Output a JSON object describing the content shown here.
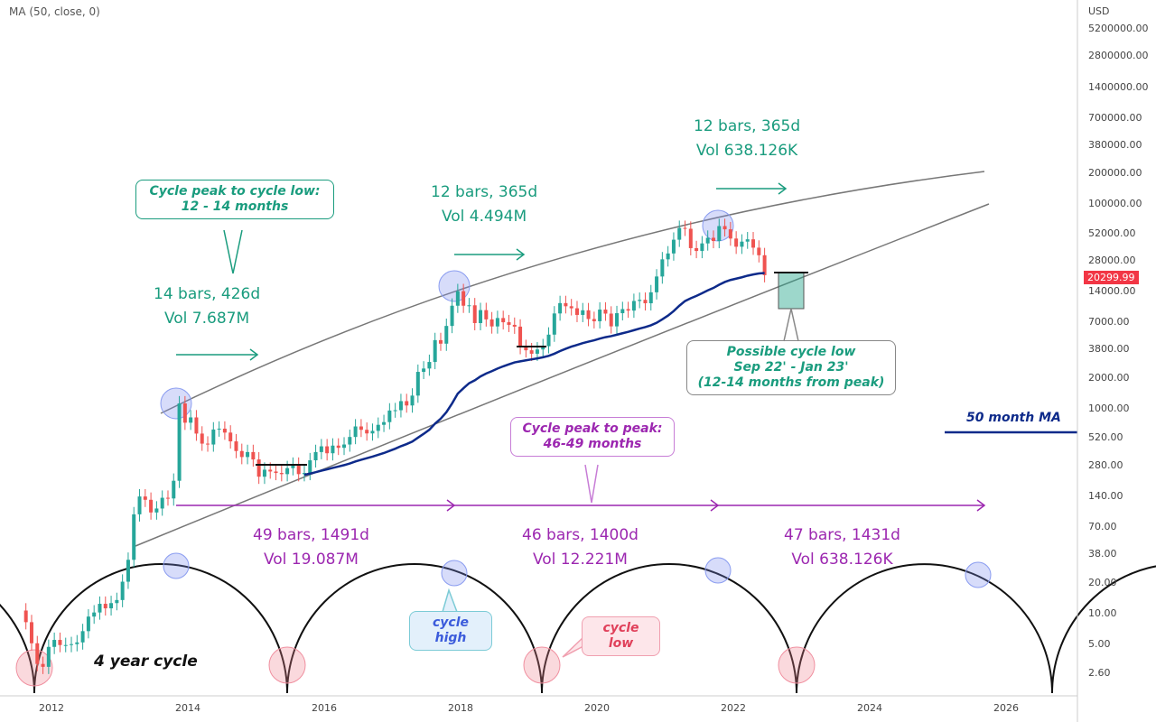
{
  "chart_data": {
    "type": "candlestick",
    "title": "",
    "indicator_legend": "MA (50, close, 0)",
    "currency": "USD",
    "y_scale": "log",
    "y_ticks": [
      "5200000.00",
      "2800000.00",
      "1400000.00",
      "700000.00",
      "380000.00",
      "200000.00",
      "100000.00",
      "52000.00",
      "28000.00",
      "14000.00",
      "7000.00",
      "3800.00",
      "2000.00",
      "1000.00",
      "520.00",
      "280.00",
      "140.00",
      "70.00",
      "38.00",
      "20.00",
      "10.00",
      "5.00",
      "2.60"
    ],
    "x_ticks": [
      "2012",
      "2014",
      "2016",
      "2018",
      "2020",
      "2022",
      "2024",
      "2026"
    ],
    "last_price": "20299.99",
    "interval": "monthly",
    "start": "2011-08",
    "closes": [
      8.2,
      5.1,
      3.2,
      3.0,
      4.7,
      5.5,
      4.9,
      4.9,
      5.0,
      5.2,
      6.7,
      9.3,
      10.2,
      12.4,
      11.2,
      12.6,
      13.5,
      20.4,
      33.4,
      93,
      139,
      129,
      97,
      106,
      135,
      133,
      198,
      1130,
      732,
      825,
      573,
      457,
      448,
      628,
      640,
      586,
      481,
      387,
      338,
      378,
      320,
      217,
      254,
      244,
      236,
      230,
      263,
      284,
      230,
      236,
      314,
      378,
      430,
      368,
      437,
      416,
      448,
      531,
      673,
      624,
      575,
      609,
      698,
      742,
      963,
      970,
      1190,
      1079,
      1348,
      2300,
      2480,
      2875,
      4700,
      4340,
      6470,
      10200,
      14150,
      10200,
      10300,
      6900,
      9240,
      7500,
      6400,
      7730,
      7030,
      6630,
      6370,
      4020,
      3740,
      3460,
      3810,
      4100,
      5320,
      8570,
      10820,
      10080,
      9630,
      8290,
      9200,
      7560,
      7190,
      9350,
      8540,
      6410,
      8620,
      9450,
      9140,
      11350,
      11650,
      10780,
      13800,
      19700,
      28990,
      33100,
      45100,
      58800,
      57700,
      37300,
      35000,
      41500,
      47100,
      43800,
      61300,
      57000,
      46300,
      38500,
      43200,
      45500,
      37700,
      31800,
      20299.99
    ],
    "ma_period": 50,
    "colors": {
      "up": "#26a69a",
      "down": "#ef5350",
      "ma": "#0d2a8a",
      "teal": "#1a9c7e",
      "purple": "#9c27b0",
      "cycle_high": "#7b8cf0",
      "cycle_low": "#f08090"
    }
  },
  "annotations": {
    "peak_to_low_bubble": [
      "Cycle peak to cycle low:",
      "12 - 14 months"
    ],
    "measure_1": [
      "14 bars, 426d",
      "Vol 7.687M"
    ],
    "measure_2": [
      "12 bars, 365d",
      "Vol 4.494M"
    ],
    "measure_3": [
      "12 bars, 365d",
      "Vol 638.126K"
    ],
    "possible_low_bubble": [
      "Possible cycle low",
      "Sep 22' - Jan 23'",
      "(12-14 months from peak)"
    ],
    "peak_to_peak_bubble": [
      "Cycle peak to peak:",
      "46-49 months"
    ],
    "cycle_1": [
      "49 bars, 1491d",
      "Vol 19.087M"
    ],
    "cycle_2": [
      "46 bars, 1400d",
      "Vol 12.221M"
    ],
    "cycle_3": [
      "47 bars, 1431d",
      "Vol 638.126K"
    ],
    "ma_label": "50 month MA",
    "cycle_high_label": "cycle high",
    "cycle_low_label": "cycle low",
    "four_year_label": "4 year cycle"
  }
}
